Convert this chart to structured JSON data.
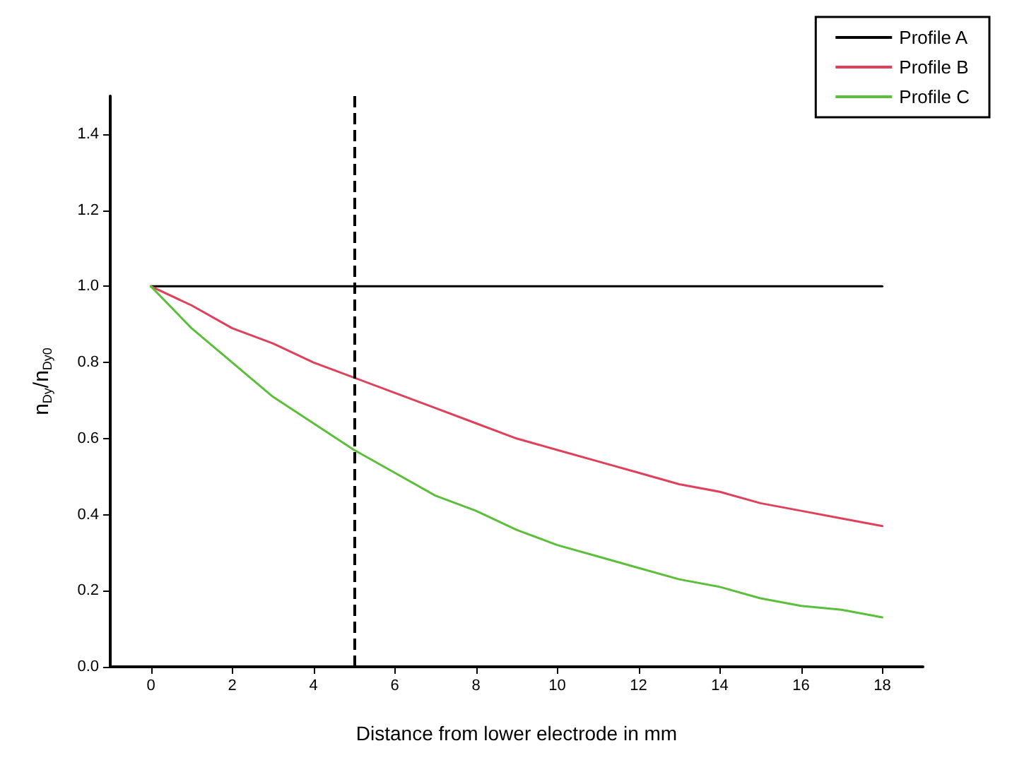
{
  "chart_data": {
    "type": "line",
    "xlabel": "Distance from lower electrode in mm",
    "ylabel": "n$_{Dy}$/n$_{Dy0}$",
    "x": [
      0,
      1,
      2,
      3,
      4,
      5,
      6,
      7,
      8,
      9,
      10,
      11,
      12,
      13,
      14,
      15,
      16,
      17,
      18
    ],
    "series": [
      {
        "name": "Profile A",
        "color": "#000000",
        "values": [
          1,
          1,
          1,
          1,
          1,
          1,
          1,
          1,
          1,
          1,
          1,
          1,
          1,
          1,
          1,
          1,
          1,
          1,
          1
        ]
      },
      {
        "name": "Profile B",
        "color": "#e0405a",
        "values": [
          1,
          0.95,
          0.89,
          0.85,
          0.8,
          0.76,
          0.72,
          0.68,
          0.64,
          0.6,
          0.57,
          0.54,
          0.51,
          0.48,
          0.46,
          0.43,
          0.41,
          0.39,
          0.37
        ]
      },
      {
        "name": "Profile C",
        "color": "#5cbf3a",
        "values": [
          1,
          0.89,
          0.8,
          0.71,
          0.64,
          0.57,
          0.51,
          0.45,
          0.41,
          0.36,
          0.32,
          0.29,
          0.26,
          0.23,
          0.21,
          0.18,
          0.16,
          0.15,
          0.13
        ]
      }
    ],
    "xlim": [
      -1,
      19
    ],
    "xticks": [
      0,
      2,
      4,
      6,
      8,
      10,
      12,
      14,
      16,
      18
    ],
    "ylim": [
      0,
      1.5
    ],
    "yticks": [
      {
        "value": 0,
        "label": "0.0"
      },
      0.2,
      0.4,
      0.6,
      0.8,
      {
        "value": 1,
        "label": "1.0"
      },
      1.2,
      1.4
    ],
    "ref_lines": [
      {
        "axis": "x",
        "value": 5,
        "color": "#000000",
        "line_style": "dashed"
      }
    ],
    "legend": "top right",
    "grid": false,
    "marker": "none",
    "line_style": "solid"
  }
}
